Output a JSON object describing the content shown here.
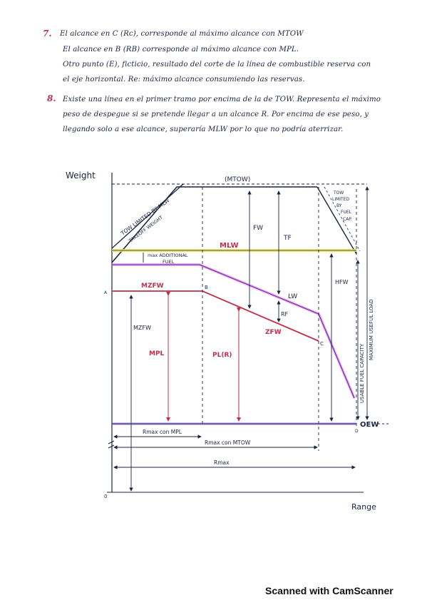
{
  "notes": {
    "q7_number": "7.",
    "q7_lines": [
      "El alcance en C (Rc), corresponde al máximo alcance con MTOW",
      "El alcance en B (RB) corresponde al máximo alcance con MPL.",
      "Otro punto (E), ficticio, resultado del corte de la línea de combustible reserva con",
      "el eje horizontal. Re: máximo alcance consumiendo las reservas."
    ],
    "q8_number": "8.",
    "q8_lines": [
      "Existe una línea en el primer tramo por encima de la de TOW. Representa el máximo",
      "peso de despegue si se pretende llegar a un alcance R. Por encima de ese peso, y",
      "llegando solo a ese alcance, superaría MLW por lo que no podría aterrizar."
    ]
  },
  "diagram": {
    "y_axis_label": "Weight",
    "x_axis_label": "Range",
    "mtow_label": "(MTOW)",
    "tow_limited_mlw_label": "TOW LIMITED BY MLW",
    "takeoff_weight_label": "TAKEOFF WEIGHT",
    "mlw_label": "MLW",
    "max_additional_fuel_label_1": "max ADDITIONAL",
    "max_additional_fuel_label_2": "FUEL",
    "mzfw_label": "MZFW",
    "point_a": "A",
    "point_b": "B",
    "point_c": "C",
    "point_d": "D",
    "fw_label": "FW",
    "tf_label": "TF",
    "lw_label": "LW",
    "rf_label": "RF",
    "zfw_label": "ZFW",
    "mzfw_side_label": "MZFW",
    "mpl_label": "MPL",
    "pl_r_label": "PL(R)",
    "hfw_label": "HFW",
    "tow_limited_fuel_label": [
      "TOW",
      "LIMITED",
      "BY",
      "FUEL",
      "CAP."
    ],
    "usable_fuel_label": "USABLE FUEL CAPACITY",
    "max_useful_load_label": "MAXIMUM USEFUL LOAD",
    "oew_label": "OEW",
    "rmax_mpl_label": "Rmax con MPL",
    "rmax_mtow_label": "Rmax con MTOW",
    "rmax_label": "Rmax",
    "origin_label": "0"
  },
  "footer": "Scanned with CamScanner",
  "colors": {
    "ink": "#1c2440",
    "red_ink": "#c0304a",
    "highlight_yellow": "#f2e64a",
    "highlight_pink": "#e07be0",
    "highlight_purple": "#7a52c9"
  }
}
